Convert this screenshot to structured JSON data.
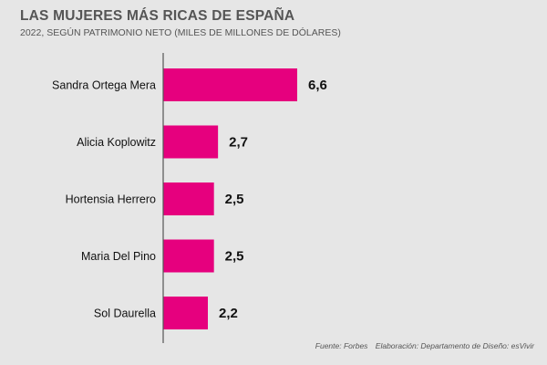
{
  "chart_data": {
    "type": "bar",
    "orientation": "horizontal",
    "title": "LAS MUJERES MÁS RICAS DE ESPAÑA",
    "subtitle": "2022, SEGÚN PATRIMONIO NETO (MILES DE MILLONES DE DÓLARES)",
    "categories": [
      "Sandra Ortega Mera",
      "Alicia Koplowitz",
      "Hortensia Herrero",
      "Maria Del Pino",
      "Sol Daurella"
    ],
    "values": [
      6.6,
      2.7,
      2.5,
      2.5,
      2.2
    ],
    "value_labels": [
      "6,6",
      "2,7",
      "2,5",
      "2,5",
      "2,2"
    ],
    "xlim": [
      0,
      7
    ],
    "xlabel": "",
    "ylabel": "",
    "grid": false,
    "bar_color": "#e6007e",
    "source": "Fuente: Forbes",
    "credit": "Elaboración: Departamento de Diseño: esVivir"
  }
}
